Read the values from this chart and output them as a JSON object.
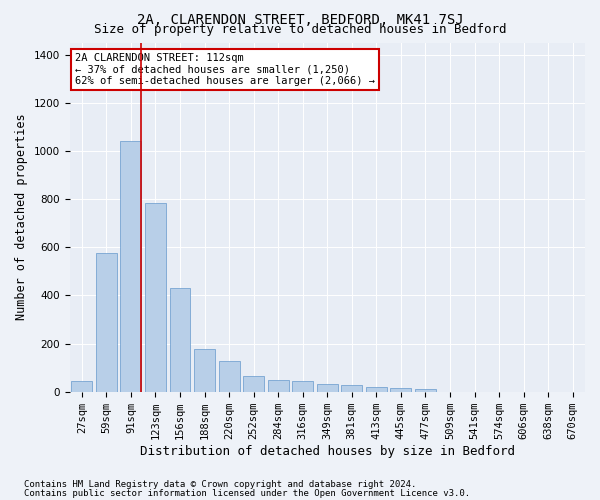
{
  "title1": "2A, CLARENDON STREET, BEDFORD, MK41 7SJ",
  "title2": "Size of property relative to detached houses in Bedford",
  "xlabel": "Distribution of detached houses by size in Bedford",
  "ylabel": "Number of detached properties",
  "categories": [
    "27sqm",
    "59sqm",
    "91sqm",
    "123sqm",
    "156sqm",
    "188sqm",
    "220sqm",
    "252sqm",
    "284sqm",
    "316sqm",
    "349sqm",
    "381sqm",
    "413sqm",
    "445sqm",
    "477sqm",
    "509sqm",
    "541sqm",
    "574sqm",
    "606sqm",
    "638sqm",
    "670sqm"
  ],
  "values": [
    45,
    575,
    1040,
    785,
    430,
    178,
    128,
    65,
    50,
    45,
    30,
    28,
    20,
    15,
    12,
    0,
    0,
    0,
    0,
    0,
    0
  ],
  "bar_color": "#b8cfe8",
  "bar_edge_color": "#6699cc",
  "vline_color": "#cc0000",
  "vline_x_index": 2.4,
  "annotation_text": "2A CLARENDON STREET: 112sqm\n← 37% of detached houses are smaller (1,250)\n62% of semi-detached houses are larger (2,066) →",
  "annotation_box_color": "white",
  "annotation_box_edge_color": "#cc0000",
  "ylim": [
    0,
    1450
  ],
  "yticks": [
    0,
    200,
    400,
    600,
    800,
    1000,
    1200,
    1400
  ],
  "footnote1": "Contains HM Land Registry data © Crown copyright and database right 2024.",
  "footnote2": "Contains public sector information licensed under the Open Government Licence v3.0.",
  "bg_color": "#eef2f8",
  "plot_bg_color": "#e8edf5",
  "title1_fontsize": 10,
  "title2_fontsize": 9,
  "xlabel_fontsize": 9,
  "ylabel_fontsize": 8.5,
  "tick_fontsize": 7.5,
  "annotation_fontsize": 7.5,
  "footnote_fontsize": 6.5
}
